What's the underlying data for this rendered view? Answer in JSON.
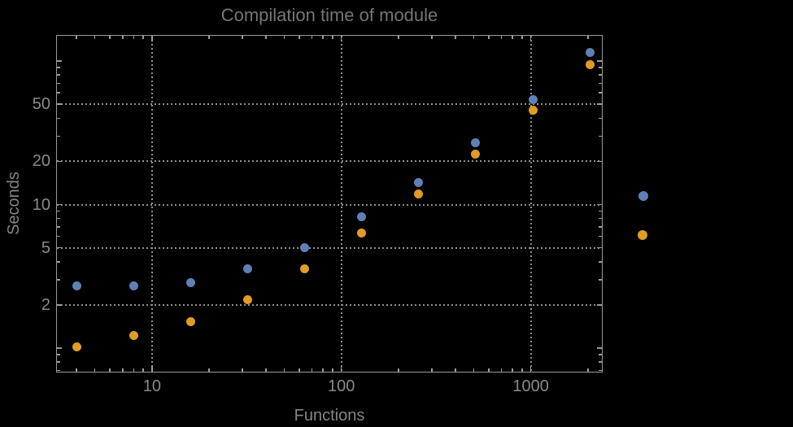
{
  "title": "Compilation time of module",
  "colors": {
    "background": "#000000",
    "frame": "#9a9a9a",
    "grid": "#8f8f8f",
    "tick_label": "#8a8a8a",
    "axis_label": "#848484",
    "title": "#757575",
    "series_blue": "#5e81b5",
    "series_orange": "#e19c24"
  },
  "chart_data": {
    "type": "scatter",
    "title": "Compilation time of module",
    "xlabel": "Functions",
    "ylabel": "Seconds",
    "x_scale": "log",
    "y_scale": "log",
    "xlim": [
      3.15,
      2360
    ],
    "ylim": [
      0.69,
      150
    ],
    "grid": "dotted",
    "x_ticks": [
      {
        "value": 10,
        "label": "10"
      },
      {
        "value": 100,
        "label": "100"
      },
      {
        "value": 1000,
        "label": "1000"
      }
    ],
    "y_ticks": [
      {
        "value": 2,
        "label": "2"
      },
      {
        "value": 5,
        "label": "5"
      },
      {
        "value": 10,
        "label": "10"
      },
      {
        "value": 20,
        "label": "20"
      },
      {
        "value": 50,
        "label": "50"
      }
    ],
    "x": [
      4,
      8,
      16,
      32,
      64,
      128,
      256,
      512,
      1024,
      2048
    ],
    "series": [
      {
        "label": "",
        "color": "#5e81b5",
        "values": [
          2.72,
          2.72,
          2.87,
          3.58,
          5.04,
          8.2,
          14.2,
          27.0,
          54.0,
          115.5
        ]
      },
      {
        "label": "",
        "color": "#e19c24",
        "values": [
          1.02,
          1.23,
          1.52,
          2.17,
          3.58,
          6.3,
          11.8,
          22.6,
          45.2,
          94.5
        ]
      }
    ],
    "legend": {
      "position": "right-outside",
      "markers": [
        {
          "color": "#5e81b5"
        },
        {
          "color": "#e19c24"
        }
      ]
    }
  }
}
